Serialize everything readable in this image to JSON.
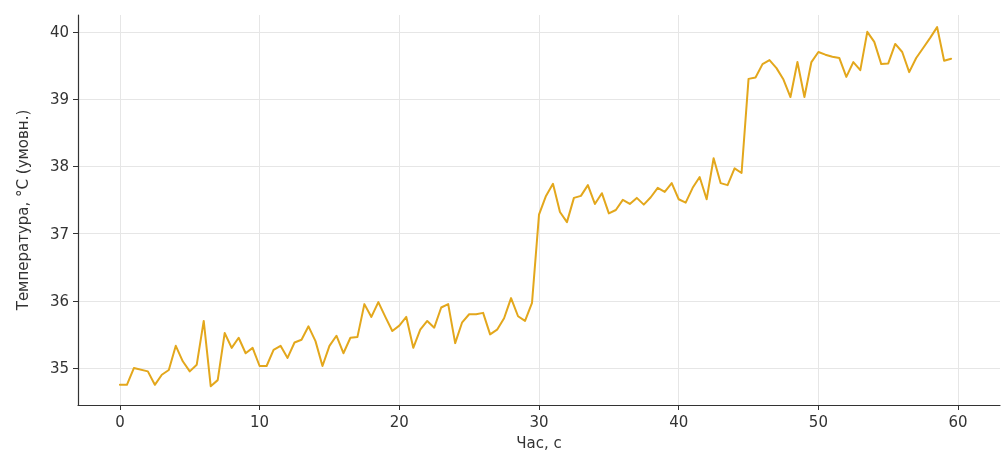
{
  "chart_data": {
    "type": "line",
    "xlabel": "Час, с",
    "ylabel": "Температура, °C (умовн.)",
    "x": [
      0,
      0.5,
      1,
      2,
      2.5,
      3,
      3.5,
      4,
      4.5,
      5,
      5.5,
      6,
      6.5,
      7,
      7.5,
      8,
      8.5,
      9,
      9.5,
      10,
      10.5,
      11,
      11.5,
      12,
      12.5,
      13,
      13.5,
      14,
      14.5,
      15,
      15.5,
      16,
      16.5,
      17,
      17.5,
      18,
      18.5,
      19,
      19.5,
      20,
      20.5,
      21,
      21.5,
      22,
      22.5,
      23,
      23.5,
      24,
      24.5,
      25,
      25.5,
      26,
      26.5,
      27,
      27.5,
      28,
      28.5,
      29,
      29.5,
      30,
      30.5,
      31,
      31.5,
      32,
      32.5,
      33,
      33.5,
      34,
      34.5,
      35,
      35.5,
      36,
      36.5,
      37,
      37.5,
      38,
      38.5,
      39,
      39.5,
      40,
      40.5,
      41,
      41.5,
      42,
      42.5,
      43,
      43.5,
      44,
      44.5,
      45,
      45.5,
      46,
      46.5,
      47,
      47.5,
      48,
      48.5,
      49,
      49.5,
      50,
      50.5,
      51,
      51.5,
      52,
      52.5,
      53,
      53.5,
      54,
      54.5,
      55,
      55.5,
      56,
      56.5,
      57,
      57.5,
      58,
      58.5,
      59,
      59.5
    ],
    "series": [
      {
        "color": "#e3a71c",
        "values": [
          34.75,
          34.75,
          35.0,
          34.95,
          34.75,
          34.9,
          34.97,
          35.33,
          35.1,
          34.95,
          35.05,
          35.7,
          34.73,
          34.82,
          35.52,
          35.3,
          35.45,
          35.22,
          35.3,
          35.03,
          35.03,
          35.27,
          35.33,
          35.15,
          35.38,
          35.42,
          35.62,
          35.4,
          35.03,
          35.33,
          35.48,
          35.22,
          35.45,
          35.46,
          35.95,
          35.76,
          35.98,
          35.76,
          35.55,
          35.63,
          35.76,
          35.3,
          35.57,
          35.7,
          35.6,
          35.9,
          35.95,
          35.37,
          35.68,
          35.8,
          35.8,
          35.82,
          35.5,
          35.57,
          35.74,
          36.04,
          35.77,
          35.7,
          35.97,
          37.28,
          37.56,
          37.74,
          37.32,
          37.17,
          37.53,
          37.56,
          37.72,
          37.44,
          37.6,
          37.3,
          37.35,
          37.5,
          37.44,
          37.53,
          37.43,
          37.54,
          37.68,
          37.62,
          37.75,
          37.51,
          37.46,
          37.68,
          37.84,
          37.51,
          38.12,
          37.75,
          37.72,
          37.97,
          37.9,
          39.3,
          39.32,
          39.52,
          39.58,
          39.46,
          39.29,
          39.03,
          39.55,
          39.03,
          39.55,
          39.7,
          39.66,
          39.63,
          39.61,
          39.33,
          39.55,
          39.43,
          40.0,
          39.85,
          39.52,
          39.53,
          39.82,
          39.7,
          39.4,
          39.61,
          39.76,
          39.91,
          40.07,
          39.57,
          39.6
        ]
      }
    ],
    "xlim": [
      -3,
      63
    ],
    "ylim": [
      34.45,
      40.25
    ],
    "xticks": [
      0,
      10,
      20,
      30,
      40,
      50,
      60
    ],
    "yticks": [
      35,
      36,
      37,
      38,
      39,
      40
    ],
    "grid": true,
    "marker": "none",
    "line_style": "solid"
  }
}
